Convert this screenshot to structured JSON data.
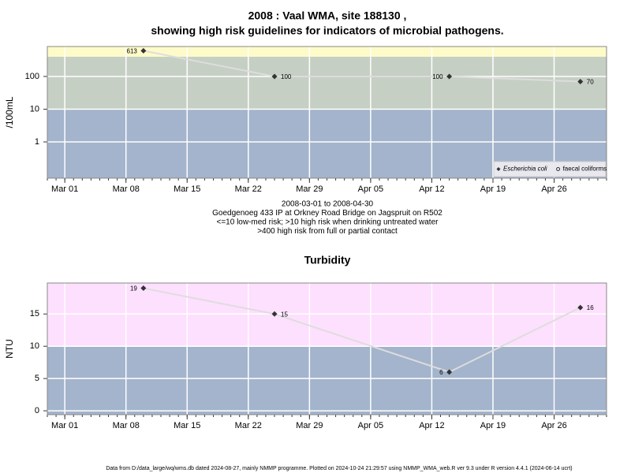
{
  "chart_data": [
    {
      "type": "line",
      "title": [
        "2008 : Vaal WMA, site 188130 ,",
        "showing high risk guidelines for indicators of microbial pathogens."
      ],
      "ylabel": "/100mL",
      "log": true,
      "x": [
        "Mar 10",
        "Mar 25",
        "Apr 14",
        "Apr 29"
      ],
      "series": [
        {
          "name": "Escherichia coli",
          "color": "#333333",
          "marker": "diamond",
          "italic": true,
          "values": [
            613,
            100,
            100,
            70
          ]
        },
        {
          "name": "faecal coliforms",
          "color": "#333333",
          "marker": "circle",
          "italic": false,
          "values": [
            null,
            null,
            null,
            null
          ]
        }
      ],
      "xlim": [
        "Feb 27",
        "May 02"
      ],
      "xticks": [
        "Mar 01",
        "Mar 08",
        "Mar 15",
        "Mar 22",
        "Mar 29",
        "Apr 05",
        "Apr 12",
        "Apr 19",
        "Apr 26"
      ],
      "ylim": [
        0.078,
        824
      ],
      "yticks": [
        1,
        10,
        100
      ],
      "thresholds": [
        10,
        400
      ],
      "band_colors": [
        "#a3b4cc",
        "#c6cfc4",
        "#fdfbc9"
      ],
      "line_color": "#dddddd",
      "grid": true,
      "legend": "bottom-right",
      "notes": [
        "2008-03-01 to 2008-04-30",
        "Goedgenoeg 433 IP at Orkney Road Bridge on Jagspruit on R502",
        "<=10 low-med risk; >10 high risk when drinking untreated water",
        ">400 high risk from full or partial contact"
      ]
    },
    {
      "type": "line",
      "title": [
        "Turbidity"
      ],
      "ylabel": "NTU",
      "log": false,
      "x": [
        "Mar 10",
        "Mar 25",
        "Apr 14",
        "Apr 29"
      ],
      "series": [
        {
          "name": null,
          "color": "#333333",
          "marker": "diamond",
          "italic": false,
          "values": [
            19,
            15,
            6,
            16
          ]
        }
      ],
      "xlim": [
        "Feb 27",
        "May 02"
      ],
      "xticks": [
        "Mar 01",
        "Mar 08",
        "Mar 15",
        "Mar 22",
        "Mar 29",
        "Apr 05",
        "Apr 12",
        "Apr 19",
        "Apr 26"
      ],
      "ylim": [
        -0.6,
        19.8
      ],
      "yticks": [
        0,
        5,
        10,
        15
      ],
      "thresholds": [
        10
      ],
      "band_colors": [
        "#a3b4cc",
        "#fde0fd"
      ],
      "line_color": "#dddddd",
      "grid": true
    }
  ],
  "footer": "Data from D:/data_large/wq/wms.db dated 2024-08-27, mainly NMMP programme. Plotted on 2024-10-24 21:29:57 using NMMP_WMA_web.R ver 9.3 under R version 4.4.1 (2024-06-14 ucrt)"
}
